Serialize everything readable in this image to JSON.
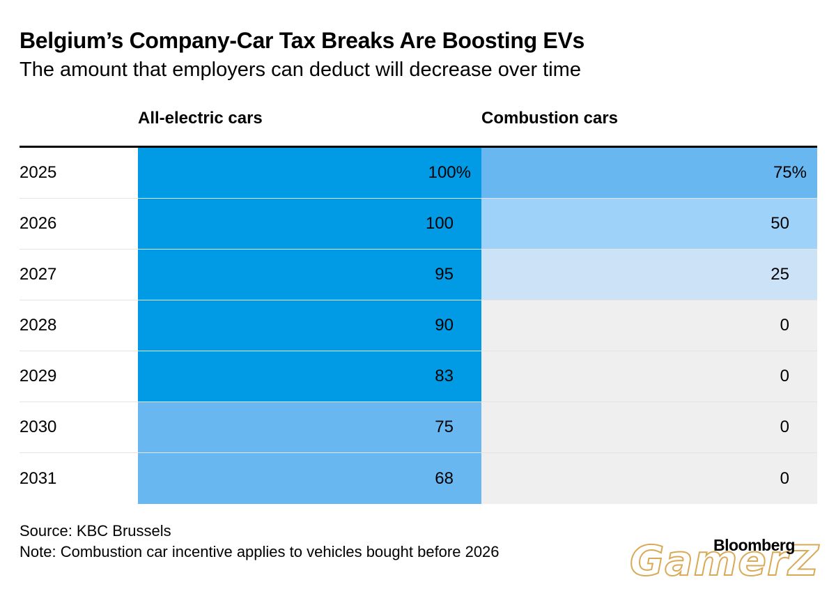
{
  "chart_data": {
    "type": "table",
    "title": "Belgium’s Company-Car Tax Breaks Are Boosting EVs",
    "subtitle": "The amount that employers can deduct will decrease over time",
    "columns": [
      "All-electric cars",
      "Combustion cars"
    ],
    "rows": [
      {
        "year": "2025",
        "ev": 100,
        "comb": 75,
        "ev_label": "100%",
        "comb_label": "75%"
      },
      {
        "year": "2026",
        "ev": 100,
        "comb": 50,
        "ev_label": "100",
        "comb_label": "50"
      },
      {
        "year": "2027",
        "ev": 95,
        "comb": 25,
        "ev_label": "95",
        "comb_label": "25"
      },
      {
        "year": "2028",
        "ev": 90,
        "comb": 0,
        "ev_label": "90",
        "comb_label": "0"
      },
      {
        "year": "2029",
        "ev": 83,
        "comb": 0,
        "ev_label": "83",
        "comb_label": "0"
      },
      {
        "year": "2030",
        "ev": 75,
        "comb": 0,
        "ev_label": "75",
        "comb_label": "0"
      },
      {
        "year": "2031",
        "ev": 68,
        "comb": 0,
        "ev_label": "68",
        "comb_label": "0"
      }
    ],
    "color_scale": {
      "high": "#009be4",
      "mid": "#69b7f0",
      "low": "#9fd2f9",
      "lower": "#cbe2f7",
      "zero": "#efefef"
    }
  },
  "source": "Source: KBC Brussels",
  "note": "Note: Combustion car incentive applies to vehicles bought before 2026",
  "brand": "Bloomberg",
  "watermark": "GamerZ"
}
